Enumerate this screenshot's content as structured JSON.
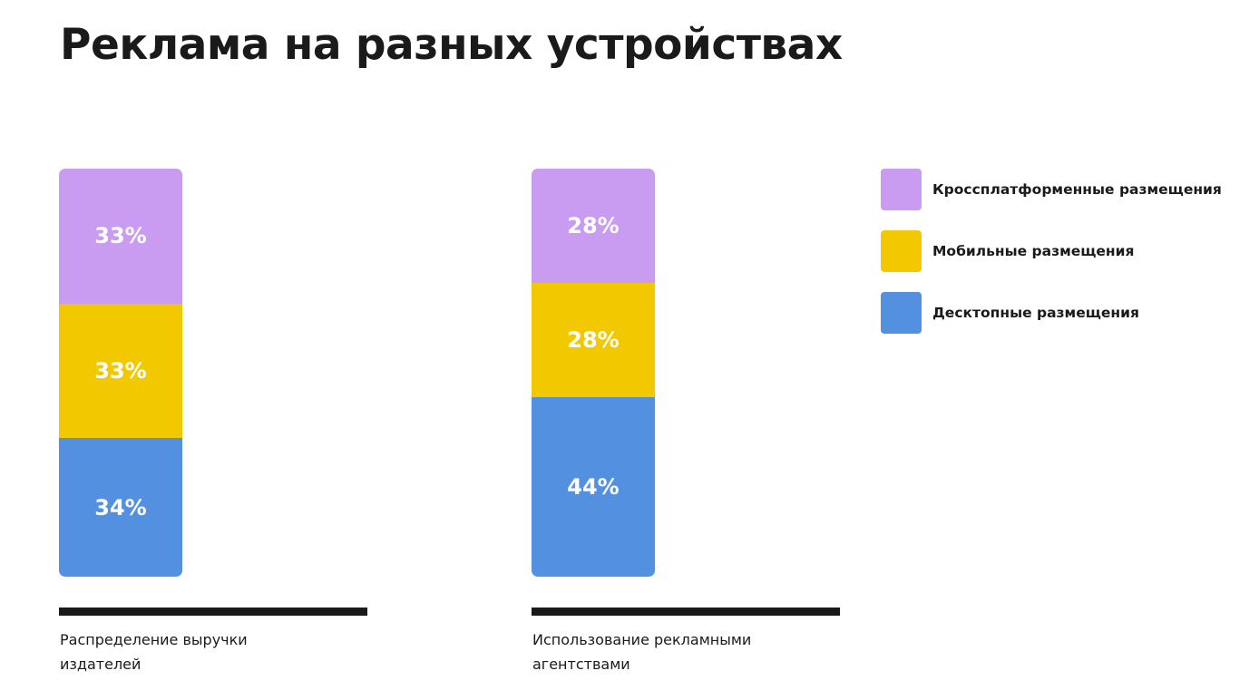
{
  "title": "Реклама на разных устройствах",
  "colors": {
    "cross": "#c99cf2",
    "mobile": "#f2c900",
    "desktop": "#5390e0"
  },
  "chart_data": {
    "type": "bar",
    "stacked": true,
    "percent": true,
    "categories": [
      "Распределение выручки издателей",
      "Использование рекламными агентствами"
    ],
    "series": [
      {
        "name": "Кроссплатформенные размещения",
        "values": [
          33,
          28
        ],
        "color": "#c99cf2",
        "labels": [
          "33%",
          "28%"
        ]
      },
      {
        "name": "Мобильные размещения",
        "values": [
          33,
          28
        ],
        "color": "#f2c900",
        "labels": [
          "33%",
          "28%"
        ]
      },
      {
        "name": "Десктопные размещения",
        "values": [
          34,
          44
        ],
        "color": "#5390e0",
        "labels": [
          "34%",
          "44%"
        ]
      }
    ],
    "legend_position": "right"
  }
}
